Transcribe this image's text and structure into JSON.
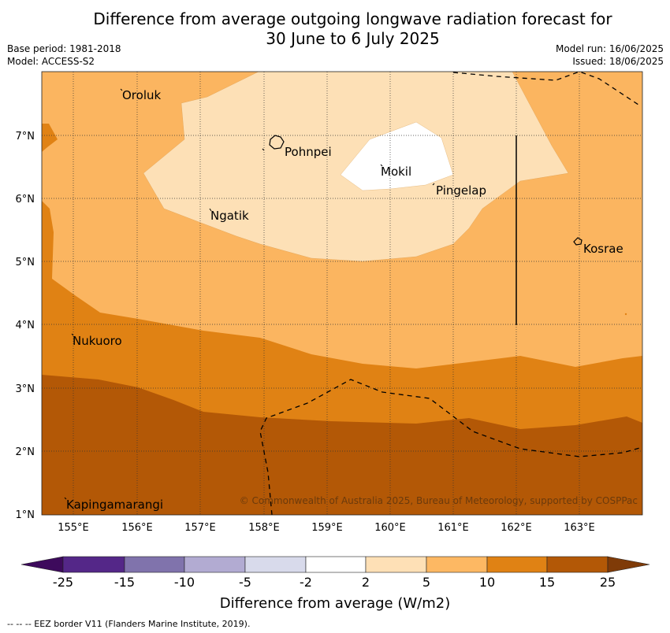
{
  "title_line1": "Difference from average outgoing longwave radiation forecast for",
  "title_line2": "30 June to 6 July 2025",
  "base_period": "Base period: 1981-2018",
  "model": "Model: ACCESS-S2",
  "model_run": "Model run: 16/06/2025",
  "issued": "Issued: 18/06/2025",
  "lon_ticks": [
    "155°E",
    "156°E",
    "157°E",
    "158°E",
    "159°E",
    "160°E",
    "161°E",
    "162°E",
    "163°E"
  ],
  "lat_ticks": [
    "7°N",
    "6°N",
    "5°N",
    "4°N",
    "3°N",
    "2°N",
    "1°N"
  ],
  "places": {
    "oroluk": "Oroluk",
    "pohnpei": "Pohnpei",
    "mokil": "Mokil",
    "pingelap": "Pingelap",
    "ngatik": "Ngatik",
    "kosrae": "Kosrae",
    "nukuoro": "Nukuoro",
    "kapingamarangi": "Kapingamarangi"
  },
  "credit": "© Commonwealth of Australia 2025, Bureau of Meteorology, supported by COSPPac",
  "colorbar": {
    "title": "Difference from average (W/m2)",
    "labels": [
      "-25",
      "-15",
      "-10",
      "-5",
      "-2",
      "2",
      "5",
      "10",
      "15",
      "25"
    ],
    "colors": [
      "#3d0a5c",
      "#542788",
      "#8073ac",
      "#b2abd2",
      "#d8daeb",
      "#ffffff",
      "#fee0b6",
      "#fdb863",
      "#e08214",
      "#b35806",
      "#7f3b08"
    ]
  },
  "footnote": "--  --  -- EEZ border V11 (Flanders Marine Institute, 2019)."
}
